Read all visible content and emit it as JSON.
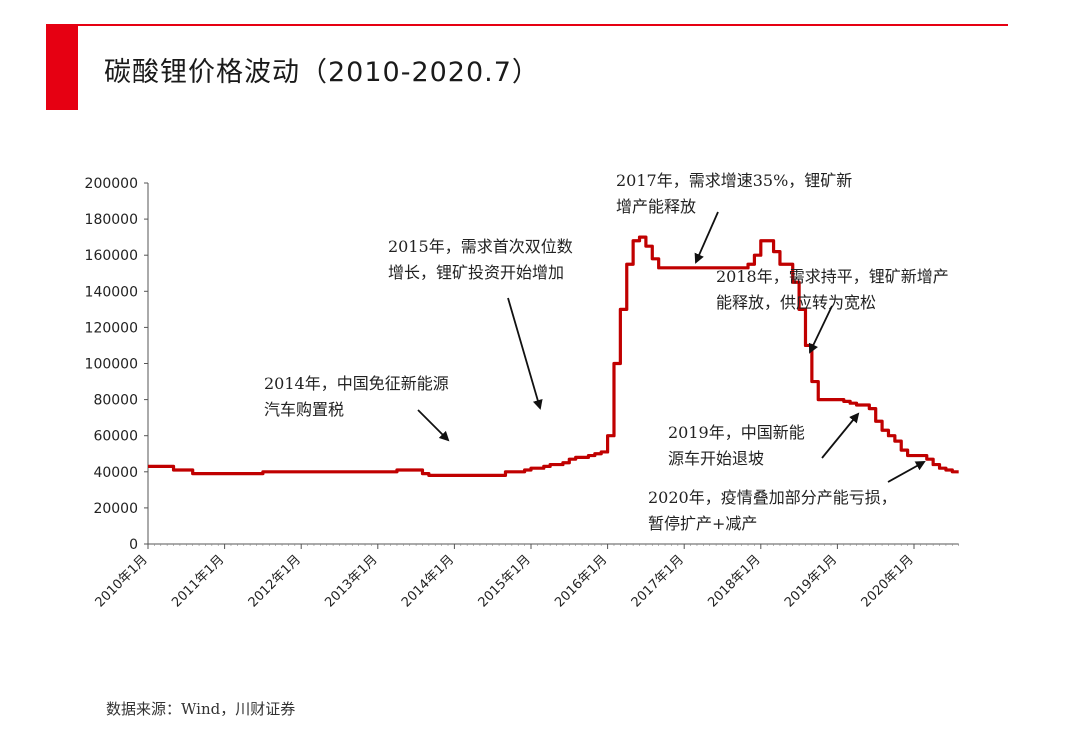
{
  "header": {
    "title": "碳酸锂价格波动（2010-2020.7）",
    "accent_color": "#e60012"
  },
  "footer": {
    "source": "数据来源：Wind，川财证券"
  },
  "chart_data": {
    "type": "line",
    "title": "",
    "xlabel": "",
    "ylabel": "",
    "ylim": [
      0,
      200000
    ],
    "yticks": [
      0,
      20000,
      40000,
      60000,
      80000,
      100000,
      120000,
      140000,
      160000,
      180000,
      200000
    ],
    "xtick_labels": [
      "2010年1月",
      "2011年1月",
      "2012年1月",
      "2013年1月",
      "2014年1月",
      "2015年1月",
      "2016年1月",
      "2017年1月",
      "2018年1月",
      "2019年1月",
      "2020年1月"
    ],
    "grid": false,
    "legend": "none",
    "series": [
      {
        "color": "#c00000",
        "x": [
          "2010-01",
          "2010-04",
          "2010-05",
          "2010-07",
          "2010-08",
          "2011-01",
          "2011-06",
          "2011-07",
          "2012-01",
          "2013-01",
          "2013-03",
          "2013-04",
          "2013-07",
          "2013-08",
          "2013-09",
          "2014-01",
          "2014-06",
          "2014-08",
          "2014-09",
          "2014-12",
          "2015-01",
          "2015-03",
          "2015-04",
          "2015-06",
          "2015-07",
          "2015-08",
          "2015-10",
          "2015-11",
          "2015-12",
          "2016-01",
          "2016-02",
          "2016-03",
          "2016-04",
          "2016-05",
          "2016-06",
          "2016-07",
          "2016-08",
          "2016-09",
          "2017-01",
          "2017-06",
          "2017-10",
          "2017-11",
          "2017-12",
          "2018-01",
          "2018-02",
          "2018-03",
          "2018-04",
          "2018-05",
          "2018-06",
          "2018-07",
          "2018-08",
          "2018-09",
          "2018-10",
          "2018-11",
          "2019-01",
          "2019-02",
          "2019-03",
          "2019-04",
          "2019-05",
          "2019-06",
          "2019-07",
          "2019-08",
          "2019-09",
          "2019-10",
          "2019-11",
          "2019-12",
          "2020-01",
          "2020-02",
          "2020-03",
          "2020-04",
          "2020-05",
          "2020-06",
          "2020-07"
        ],
        "values": [
          43000,
          43000,
          41000,
          41000,
          39000,
          39000,
          39000,
          40000,
          40000,
          40000,
          40000,
          41000,
          41000,
          39000,
          38000,
          38000,
          38000,
          38000,
          40000,
          41000,
          42000,
          43000,
          44000,
          45000,
          47000,
          48000,
          49000,
          50000,
          51000,
          60000,
          100000,
          130000,
          155000,
          168000,
          170000,
          165000,
          158000,
          153000,
          153000,
          153000,
          153000,
          155000,
          160000,
          168000,
          168000,
          162000,
          155000,
          155000,
          145000,
          130000,
          110000,
          90000,
          80000,
          80000,
          80000,
          79000,
          78000,
          77000,
          77000,
          75000,
          68000,
          63000,
          60000,
          57000,
          52000,
          49000,
          49000,
          49000,
          47000,
          44000,
          42000,
          41000,
          40000
        ]
      }
    ],
    "annotations": [
      {
        "lines": [
          "2014年，中国免征新能源",
          "汽车购置税"
        ]
      },
      {
        "lines": [
          "2015年，需求首次双位数",
          "增长，锂矿投资开始增加"
        ]
      },
      {
        "lines": [
          "2017年，需求增速35%，锂矿新",
          "增产能释放"
        ]
      },
      {
        "lines": [
          "2018年，需求持平，锂矿新增产",
          "能释放，供应转为宽松"
        ]
      },
      {
        "lines": [
          "2019年，中国新能",
          "源车开始退坡"
        ]
      },
      {
        "lines": [
          "2020年，疫情叠加部分产能亏损，",
          "暂停扩产+减产"
        ]
      }
    ]
  }
}
